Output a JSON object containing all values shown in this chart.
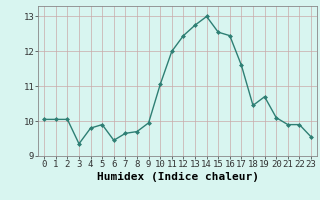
{
  "x": [
    0,
    1,
    2,
    3,
    4,
    5,
    6,
    7,
    8,
    9,
    10,
    11,
    12,
    13,
    14,
    15,
    16,
    17,
    18,
    19,
    20,
    21,
    22,
    23
  ],
  "y": [
    10.05,
    10.05,
    10.05,
    9.35,
    9.8,
    9.9,
    9.45,
    9.65,
    9.7,
    9.95,
    11.05,
    12.0,
    12.45,
    12.75,
    13.0,
    12.55,
    12.45,
    11.6,
    10.45,
    10.7,
    10.1,
    9.9,
    9.9,
    9.55
  ],
  "line_color": "#2e7f74",
  "marker": "D",
  "marker_size": 2.0,
  "bg_color": "#d8f5f0",
  "grid_color": "#c9a9a9",
  "xlabel": "Humidex (Indice chaleur)",
  "ylim": [
    9.0,
    13.3
  ],
  "xlim": [
    -0.5,
    23.5
  ],
  "yticks": [
    9,
    10,
    11,
    12,
    13
  ],
  "xticks": [
    0,
    1,
    2,
    3,
    4,
    5,
    6,
    7,
    8,
    9,
    10,
    11,
    12,
    13,
    14,
    15,
    16,
    17,
    18,
    19,
    20,
    21,
    22,
    23
  ],
  "tick_fontsize": 6.5,
  "xlabel_fontsize": 8.0,
  "line_width": 1.0
}
